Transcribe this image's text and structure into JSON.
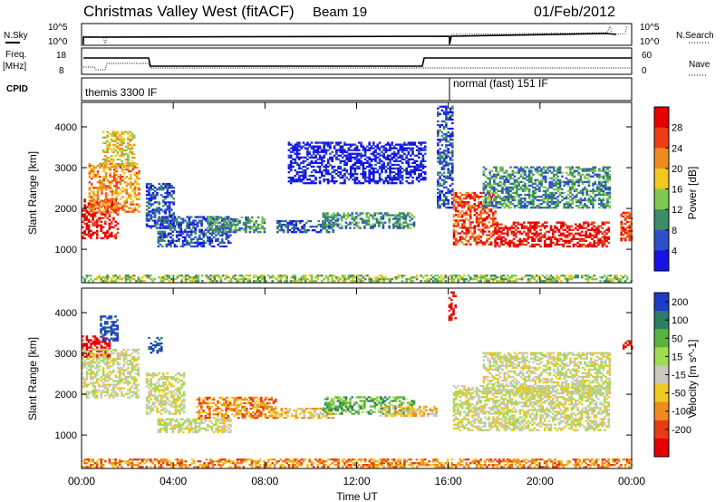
{
  "header": {
    "station": "Christmas Valley West (fitACF)",
    "beam": "Beam 19",
    "date": "01/Feb/2012"
  },
  "top_panels": {
    "nsky_label": "N.Sky",
    "nsky_ticks": [
      "10^5",
      "10^0"
    ],
    "nsearch_label": "N.Search",
    "nsearch_ticks": [
      "10^5",
      "10^0"
    ],
    "freq_label_line1": "Freq.",
    "freq_label_line2": "[MHz]",
    "freq_ticks": [
      "18",
      "8"
    ],
    "nave_label": "Nave",
    "nave_ticks": [
      "60",
      "0"
    ],
    "cpid_label": "CPID",
    "cpid_modes": [
      "themis 3300 IF",
      "normal (fast) 151 IF"
    ]
  },
  "chart_data": [
    {
      "type": "heatmap",
      "title": "",
      "xlabel": "Time UT",
      "ylabel": "Slant Range [km]",
      "x_ticks": [
        "00:00",
        "04:00",
        "08:00",
        "12:00",
        "16:00",
        "20:00",
        "00:00"
      ],
      "x_range_hours": [
        0,
        24
      ],
      "y_ticks": [
        1000,
        2000,
        3000,
        4000
      ],
      "ylim": [
        180,
        4600
      ],
      "colorbar": {
        "label": "Power [dB]",
        "ticks": [
          "4",
          "8",
          "12",
          "16",
          "20",
          "24",
          "28"
        ],
        "colors": [
          "#1414e6",
          "#2d50c8",
          "#3c8c64",
          "#7dc850",
          "#f0c81e",
          "#f08c1e",
          "#f03c14",
          "#e60000"
        ]
      },
      "regions": [
        {
          "t": [
            0.0,
            1.6
          ],
          "r": [
            1250,
            2200
          ],
          "level": 7
        },
        {
          "t": [
            0.3,
            2.5
          ],
          "r": [
            1900,
            3100
          ],
          "level": 5
        },
        {
          "t": [
            0.9,
            2.3
          ],
          "r": [
            3000,
            3900
          ],
          "level": 4
        },
        {
          "t": [
            2.8,
            4.0
          ],
          "r": [
            1500,
            2600
          ],
          "level": 1
        },
        {
          "t": [
            3.3,
            6.5
          ],
          "r": [
            1050,
            1800
          ],
          "level": 1
        },
        {
          "t": [
            5.5,
            8.0
          ],
          "r": [
            1400,
            1800
          ],
          "level": 2
        },
        {
          "t": [
            8.5,
            11.0
          ],
          "r": [
            1400,
            1700
          ],
          "level": 1
        },
        {
          "t": [
            10.5,
            14.5
          ],
          "r": [
            1500,
            1900
          ],
          "level": 2
        },
        {
          "t": [
            9.0,
            15.0
          ],
          "r": [
            2600,
            3600
          ],
          "level": 0
        },
        {
          "t": [
            15.5,
            16.2
          ],
          "r": [
            2000,
            4500
          ],
          "level": 1
        },
        {
          "t": [
            16.2,
            18.0
          ],
          "r": [
            1100,
            2400
          ],
          "level": 6
        },
        {
          "t": [
            18.0,
            23.0
          ],
          "r": [
            1050,
            1650
          ],
          "level": 7
        },
        {
          "t": [
            17.5,
            23.0
          ],
          "r": [
            2000,
            3000
          ],
          "level": 2
        },
        {
          "t": [
            23.5,
            24.0
          ],
          "r": [
            1200,
            1900
          ],
          "level": 6
        },
        {
          "t": [
            0.0,
            24.0
          ],
          "r": [
            200,
            380
          ],
          "level": 3
        }
      ]
    },
    {
      "type": "heatmap",
      "title": "",
      "xlabel": "Time UT",
      "ylabel": "Slant Range [km]",
      "x_ticks": [
        "00:00",
        "04:00",
        "08:00",
        "12:00",
        "16:00",
        "20:00",
        "00:00"
      ],
      "x_range_hours": [
        0,
        24
      ],
      "y_ticks": [
        1000,
        2000,
        3000,
        4000
      ],
      "ylim": [
        180,
        4600
      ],
      "colorbar": {
        "label": "Velocity [m s^-1]",
        "ticks": [
          "200",
          "100",
          "50",
          "15",
          "-15",
          "-50",
          "-100",
          "-200"
        ],
        "colors": [
          "#1e3cc8",
          "#2d7d64",
          "#5ab43c",
          "#a0dc50",
          "#c8c8be",
          "#f0c81e",
          "#f08c1e",
          "#e63c14",
          "#e60000"
        ]
      },
      "regions": [
        {
          "t": [
            0.0,
            1.2
          ],
          "r": [
            2900,
            3400
          ],
          "level": 8
        },
        {
          "t": [
            0.8,
            1.6
          ],
          "r": [
            3300,
            3900
          ],
          "level": 0
        },
        {
          "t": [
            0.0,
            2.5
          ],
          "r": [
            1900,
            3100
          ],
          "level": 4
        },
        {
          "t": [
            2.9,
            3.5
          ],
          "r": [
            3000,
            3400
          ],
          "level": 0
        },
        {
          "t": [
            2.8,
            4.5
          ],
          "r": [
            1500,
            2500
          ],
          "level": 4
        },
        {
          "t": [
            3.3,
            6.5
          ],
          "r": [
            1050,
            1400
          ],
          "level": 4
        },
        {
          "t": [
            5.0,
            8.5
          ],
          "r": [
            1400,
            1900
          ],
          "level": 6
        },
        {
          "t": [
            8.5,
            11.0
          ],
          "r": [
            1400,
            1650
          ],
          "level": 5
        },
        {
          "t": [
            10.5,
            14.5
          ],
          "r": [
            1500,
            1950
          ],
          "level": 2
        },
        {
          "t": [
            13.0,
            15.5
          ],
          "r": [
            1450,
            1700
          ],
          "level": 5
        },
        {
          "t": [
            16.0,
            16.3
          ],
          "r": [
            3800,
            4500
          ],
          "level": 8
        },
        {
          "t": [
            16.2,
            23.0
          ],
          "r": [
            1100,
            2200
          ],
          "level": 4
        },
        {
          "t": [
            17.5,
            23.0
          ],
          "r": [
            2000,
            3000
          ],
          "level": 4
        },
        {
          "t": [
            23.6,
            24.0
          ],
          "r": [
            3100,
            3300
          ],
          "level": 8
        },
        {
          "t": [
            0.0,
            24.0
          ],
          "r": [
            200,
            420
          ],
          "level": 6
        }
      ]
    }
  ]
}
